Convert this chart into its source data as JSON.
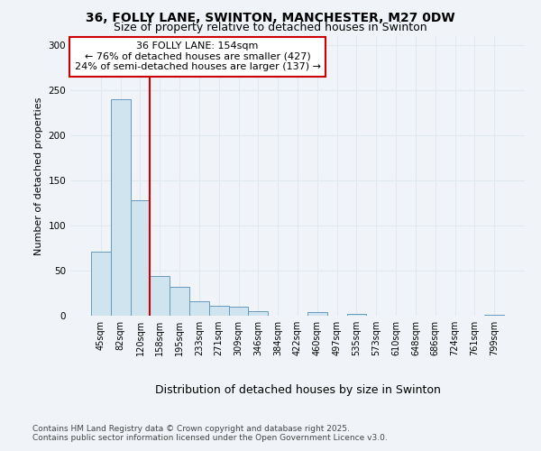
{
  "title_line1": "36, FOLLY LANE, SWINTON, MANCHESTER, M27 0DW",
  "title_line2": "Size of property relative to detached houses in Swinton",
  "xlabel": "Distribution of detached houses by size in Swinton",
  "ylabel": "Number of detached properties",
  "categories": [
    "45sqm",
    "82sqm",
    "120sqm",
    "158sqm",
    "195sqm",
    "233sqm",
    "271sqm",
    "309sqm",
    "346sqm",
    "384sqm",
    "422sqm",
    "460sqm",
    "497sqm",
    "535sqm",
    "573sqm",
    "610sqm",
    "648sqm",
    "686sqm",
    "724sqm",
    "761sqm",
    "799sqm"
  ],
  "values": [
    71,
    240,
    128,
    44,
    32,
    16,
    11,
    10,
    5,
    0,
    0,
    4,
    0,
    2,
    0,
    0,
    0,
    0,
    0,
    0,
    1
  ],
  "bar_color": "#d0e4f0",
  "bar_edge_color": "#6699bb",
  "vline_x_index": 2.5,
  "vline_color": "#cc0000",
  "annotation_title": "36 FOLLY LANE: 154sqm",
  "annotation_line2": "← 76% of detached houses are smaller (427)",
  "annotation_line3": "24% of semi-detached houses are larger (137) →",
  "annotation_box_color": "#cc0000",
  "ylim": [
    0,
    310
  ],
  "yticks": [
    0,
    50,
    100,
    150,
    200,
    250,
    300
  ],
  "footer_line1": "Contains HM Land Registry data © Crown copyright and database right 2025.",
  "footer_line2": "Contains public sector information licensed under the Open Government Licence v3.0.",
  "background_color": "#f0f4f8",
  "grid_color": "#e0e8f0",
  "title_fontsize": 10,
  "subtitle_fontsize": 9,
  "ylabel_fontsize": 8,
  "xlabel_fontsize": 9,
  "tick_fontsize": 7,
  "annotation_fontsize": 8,
  "footer_fontsize": 6.5
}
